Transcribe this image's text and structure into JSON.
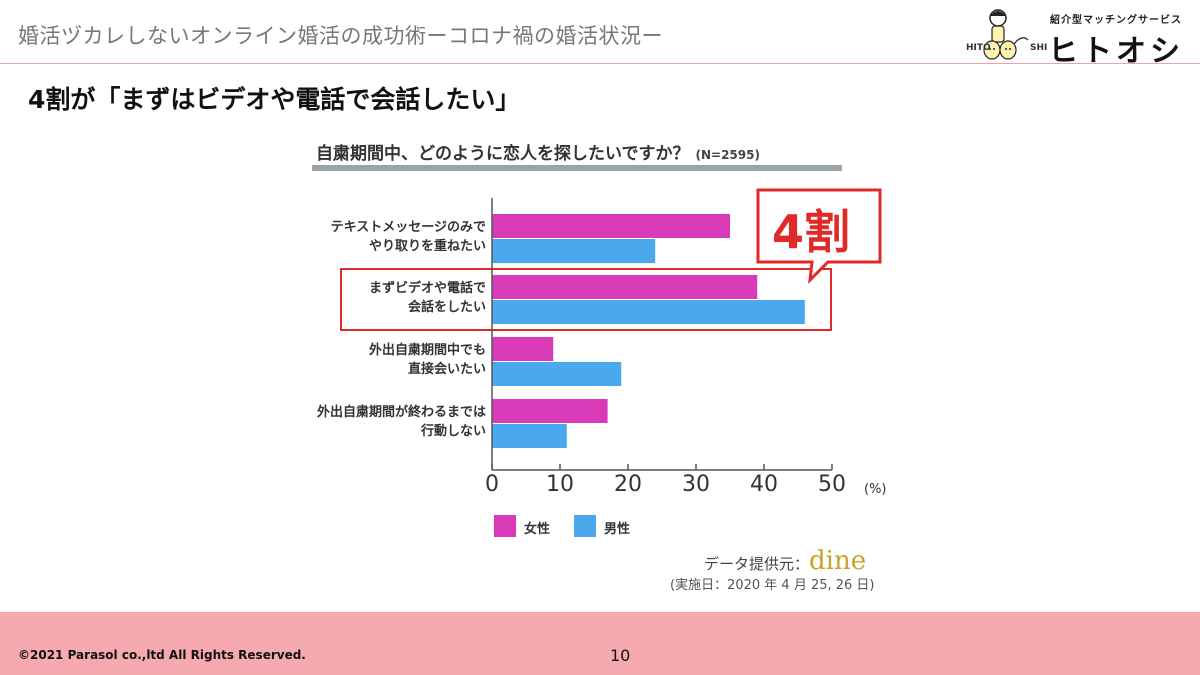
{
  "header": {
    "title": "婚活ヅカレしないオンライン婚活の成功術ーコロナ禍の婚活状況ー",
    "logo_tagline": "紹介型マッチングサービス",
    "logo_name": "ヒトオシ",
    "logo_hito": "HITO",
    "logo_shi": "SHI"
  },
  "headline": "4割が「まずはビデオや電話で会話したい」",
  "chart_data": {
    "type": "bar",
    "orientation": "horizontal",
    "title": "自粛期間中、どのように恋人を探したいですか？",
    "sample_size": "(N=2595)",
    "categories": [
      [
        "テキストメッセージのみで",
        "やり取りを重ねたい"
      ],
      [
        "まずビデオや電話で",
        "会話をしたい"
      ],
      [
        "外出自粛期間中でも",
        "直接会いたい"
      ],
      [
        "外出自粛期間が終わるまでは",
        "行動しない"
      ]
    ],
    "series": [
      {
        "name": "女性",
        "color": "#d93bb8",
        "values": [
          35,
          39,
          9,
          17
        ]
      },
      {
        "name": "男性",
        "color": "#4aa8ec",
        "values": [
          24,
          46,
          19,
          11
        ]
      }
    ],
    "xlim": [
      0,
      50
    ],
    "xticks": [
      "0",
      "10",
      "20",
      "30",
      "40",
      "50"
    ],
    "unit": "(%)",
    "highlight_category_index": 1,
    "callout": "4割",
    "accent_color": "#e02a2a",
    "source_label": "データ提供元：",
    "source_brand": "dine",
    "survey_date": "(実施日：2020 年 4 月 25, 26 日)"
  },
  "footer": {
    "copyright": "©2021 Parasol co.,ltd  All Rights Reserved.",
    "page_number": "10"
  }
}
